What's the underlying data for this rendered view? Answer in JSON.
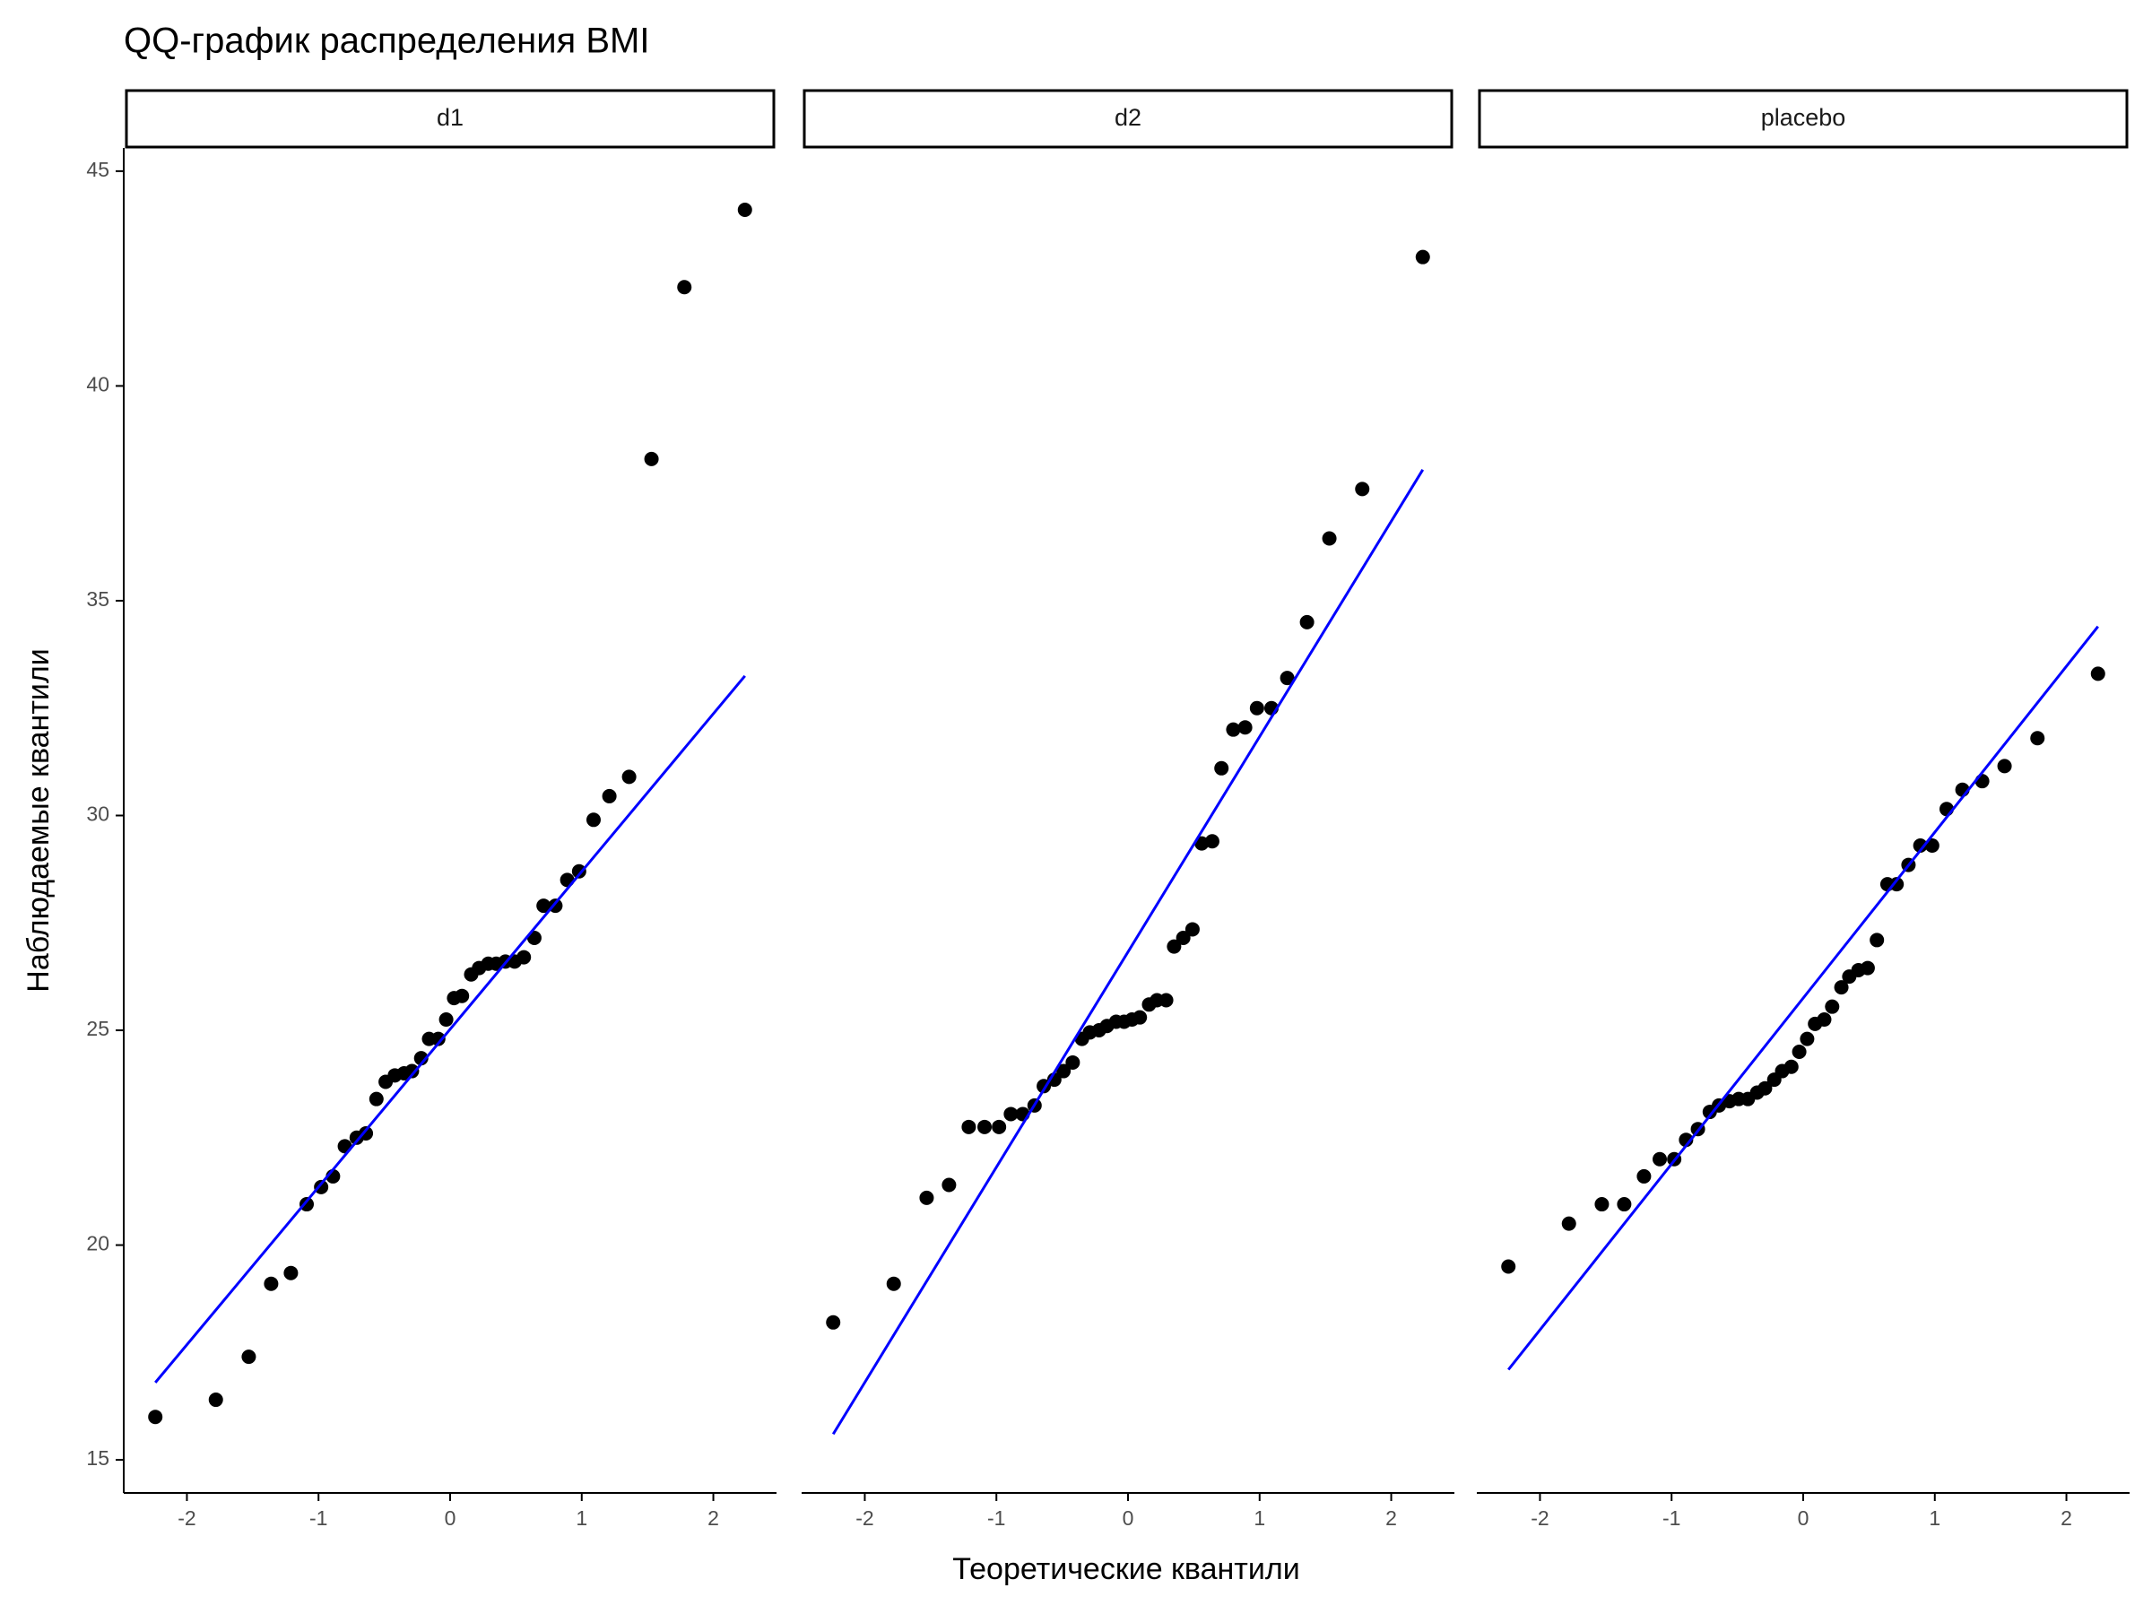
{
  "chart_data": {
    "type": "qq",
    "title": "QQ-график распределения BMI",
    "x_label": "Теоретические квантили",
    "y_label": "Наблюдаемые квантили",
    "xlim": [
      -2.48,
      2.48
    ],
    "ylim": [
      14.23,
      45.54
    ],
    "xticks": [
      -2,
      -1,
      0,
      1,
      2
    ],
    "yticks": [
      15,
      20,
      25,
      30,
      35,
      40,
      45
    ],
    "point_color": "#000000",
    "line_color": "#0000ff",
    "panels": [
      {
        "name": "d1",
        "x": [
          -2.24,
          -1.78,
          -1.53,
          -1.36,
          -1.21,
          -1.09,
          -0.98,
          -0.89,
          -0.8,
          -0.71,
          -0.64,
          -0.56,
          -0.49,
          -0.42,
          -0.35,
          -0.29,
          -0.22,
          -0.16,
          -0.09,
          -0.03,
          0.03,
          0.09,
          0.16,
          0.22,
          0.29,
          0.35,
          0.42,
          0.49,
          0.56,
          0.64,
          0.71,
          0.8,
          0.89,
          0.98,
          1.09,
          1.21,
          1.36,
          1.53,
          1.78,
          2.24
        ],
        "y": [
          16.0,
          16.4,
          17.4,
          19.1,
          19.35,
          20.95,
          21.35,
          21.6,
          22.3,
          22.5,
          22.6,
          23.4,
          23.8,
          23.95,
          24.0,
          24.05,
          24.35,
          24.8,
          24.8,
          25.25,
          25.75,
          25.8,
          26.3,
          26.45,
          26.55,
          26.55,
          26.6,
          26.6,
          26.7,
          27.15,
          27.9,
          27.9,
          28.5,
          28.7,
          29.9,
          30.45,
          30.9,
          38.3,
          42.3,
          44.1
        ],
        "line": {
          "x": [
            -2.24,
            2.24
          ],
          "y": [
            16.8,
            33.25
          ]
        }
      },
      {
        "name": "d2",
        "x": [
          -2.24,
          -1.78,
          -1.53,
          -1.36,
          -1.21,
          -1.09,
          -0.98,
          -0.89,
          -0.8,
          -0.71,
          -0.64,
          -0.56,
          -0.49,
          -0.42,
          -0.35,
          -0.29,
          -0.22,
          -0.16,
          -0.09,
          -0.03,
          0.03,
          0.09,
          0.16,
          0.22,
          0.29,
          0.35,
          0.42,
          0.49,
          0.56,
          0.64,
          0.71,
          0.8,
          0.89,
          0.98,
          1.09,
          1.21,
          1.36,
          1.53,
          1.78,
          2.24
        ],
        "y": [
          18.2,
          19.1,
          21.1,
          21.4,
          22.75,
          22.75,
          22.75,
          23.05,
          23.05,
          23.25,
          23.7,
          23.85,
          24.05,
          24.25,
          24.8,
          24.95,
          25.0,
          25.1,
          25.2,
          25.2,
          25.25,
          25.3,
          25.6,
          25.7,
          25.7,
          26.95,
          27.15,
          27.35,
          29.35,
          29.4,
          31.1,
          32.0,
          32.05,
          32.5,
          32.5,
          33.2,
          34.5,
          36.45,
          37.6,
          43.0
        ],
        "line": {
          "x": [
            -2.24,
            2.24
          ],
          "y": [
            15.6,
            38.05
          ]
        }
      },
      {
        "name": "placebo",
        "x": [
          -2.24,
          -1.78,
          -1.53,
          -1.36,
          -1.21,
          -1.09,
          -0.98,
          -0.89,
          -0.8,
          -0.71,
          -0.64,
          -0.56,
          -0.49,
          -0.42,
          -0.35,
          -0.29,
          -0.22,
          -0.16,
          -0.09,
          -0.03,
          0.03,
          0.09,
          0.16,
          0.22,
          0.29,
          0.35,
          0.42,
          0.49,
          0.56,
          0.64,
          0.71,
          0.8,
          0.89,
          0.98,
          1.09,
          1.21,
          1.36,
          1.53,
          1.78,
          2.24
        ],
        "y": [
          19.5,
          20.5,
          20.95,
          20.95,
          21.6,
          22.0,
          22.0,
          22.45,
          22.7,
          23.1,
          23.25,
          23.35,
          23.4,
          23.4,
          23.55,
          23.65,
          23.85,
          24.05,
          24.15,
          24.5,
          24.8,
          25.15,
          25.25,
          25.55,
          26.0,
          26.25,
          26.4,
          26.45,
          27.1,
          28.4,
          28.4,
          28.85,
          29.3,
          29.3,
          30.15,
          30.6,
          30.8,
          31.15,
          31.8,
          33.3
        ],
        "line": {
          "x": [
            -2.24,
            2.24
          ],
          "y": [
            17.1,
            34.4
          ]
        }
      }
    ]
  }
}
